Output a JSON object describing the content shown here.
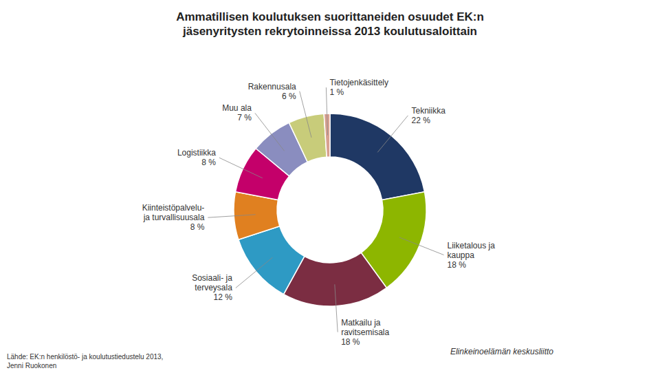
{
  "chart_data": {
    "type": "donut",
    "title": "Ammatillisen koulutuksen suorittaneiden osuudet EK:n\njäsenyritysten rekrytoinneissa 2013 koulutusaloittain",
    "categories": [
      "Tekniikka\n22 %",
      "Liiketalous ja\nkauppa\n18 %",
      "Matkailu ja\nravitsemisala\n18 %",
      "Sosiaali- ja\nterveysala\n12 %",
      "Kiinteistöpalvelu-\nja turvallisuusala\n8 %",
      "Logistiikka\n8 %",
      "Muu ala\n7 %",
      "Rakennusala\n6 %",
      "Tietojenkäsittely\n1 %"
    ],
    "values": [
      22,
      18,
      18,
      12,
      8,
      8,
      7,
      6,
      1
    ],
    "colors": [
      "#1F3864",
      "#8DB600",
      "#7B2D42",
      "#2E9AC4",
      "#E08020",
      "#C4006A",
      "#8A8DBF",
      "#C8CC7A",
      "#D8A090"
    ],
    "annotations": [
      "Lähde: EK:n henkilöstö- ja koulutustiedustelu 2013,\nJenni Ruokonen",
      "Elinkeinoelämän keskusliitto"
    ]
  }
}
